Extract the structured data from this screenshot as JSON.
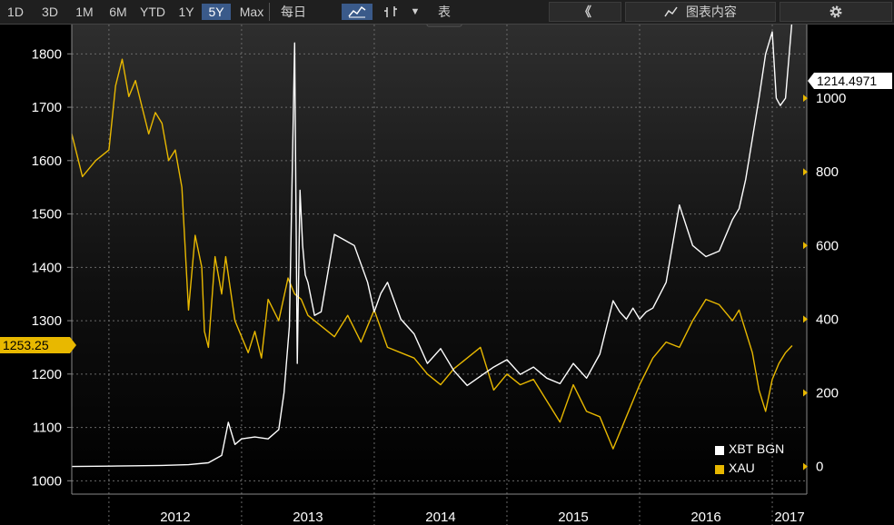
{
  "toolbar": {
    "ranges": [
      "1D",
      "3D",
      "1M",
      "6M",
      "YTD",
      "1Y",
      "5Y",
      "Max"
    ],
    "active_range": "5Y",
    "frequency": "每日",
    "frequency_caret": "▼",
    "table_label": "表",
    "collapse_label": "《",
    "chart_content_label": "图表内容",
    "settings_icon": "gear-icon"
  },
  "colors": {
    "xbt": "#ffffff",
    "xau": "#e8b800",
    "background": "#000000",
    "grid": "#6a6a6a"
  },
  "chart_data": {
    "type": "line",
    "series": [
      {
        "name": "XBT BGN",
        "axis": "right",
        "x": [
          2011.72,
          2012.0,
          2012.2,
          2012.4,
          2012.6,
          2012.75,
          2012.85,
          2012.9,
          2012.95,
          2013.0,
          2013.1,
          2013.2,
          2013.28,
          2013.32,
          2013.36,
          2013.4,
          2013.42,
          2013.44,
          2013.46,
          2013.48,
          2013.5,
          2013.55,
          2013.6,
          2013.7,
          2013.85,
          2013.95,
          2014.0,
          2014.05,
          2014.1,
          2014.2,
          2014.3,
          2014.4,
          2014.5,
          2014.6,
          2014.7,
          2014.8,
          2014.9,
          2015.0,
          2015.1,
          2015.2,
          2015.3,
          2015.4,
          2015.5,
          2015.6,
          2015.7,
          2015.8,
          2015.85,
          2015.9,
          2015.95,
          2016.0,
          2016.05,
          2016.1,
          2016.2,
          2016.3,
          2016.4,
          2016.5,
          2016.6,
          2016.7,
          2016.75,
          2016.8,
          2016.9,
          2016.95,
          2017.0,
          2017.03,
          2017.06,
          2017.1,
          2017.15
        ],
        "values": [
          0,
          1,
          2,
          3,
          5,
          10,
          30,
          120,
          60,
          75,
          80,
          75,
          100,
          200,
          380,
          1150,
          280,
          750,
          600,
          520,
          500,
          410,
          420,
          630,
          600,
          500,
          420,
          470,
          500,
          400,
          360,
          280,
          320,
          260,
          220,
          245,
          270,
          290,
          250,
          270,
          240,
          225,
          280,
          240,
          305,
          450,
          420,
          400,
          430,
          400,
          420,
          430,
          500,
          710,
          600,
          570,
          585,
          670,
          700,
          780,
          1000,
          1120,
          1180,
          1000,
          980,
          1000,
          1214.4971
        ]
      },
      {
        "name": "XAU",
        "axis": "left",
        "x": [
          2011.72,
          2011.8,
          2011.9,
          2012.0,
          2012.05,
          2012.1,
          2012.15,
          2012.2,
          2012.3,
          2012.35,
          2012.4,
          2012.45,
          2012.5,
          2012.55,
          2012.6,
          2012.65,
          2012.7,
          2012.72,
          2012.75,
          2012.8,
          2012.85,
          2012.88,
          2012.95,
          2013.05,
          2013.1,
          2013.15,
          2013.2,
          2013.28,
          2013.35,
          2013.4,
          2013.45,
          2013.5,
          2013.6,
          2013.7,
          2013.8,
          2013.9,
          2014.0,
          2014.1,
          2014.2,
          2014.3,
          2014.4,
          2014.5,
          2014.6,
          2014.7,
          2014.8,
          2014.9,
          2015.0,
          2015.1,
          2015.2,
          2015.3,
          2015.4,
          2015.5,
          2015.6,
          2015.7,
          2015.8,
          2015.9,
          2016.0,
          2016.1,
          2016.2,
          2016.3,
          2016.4,
          2016.5,
          2016.6,
          2016.7,
          2016.75,
          2016.8,
          2016.85,
          2016.9,
          2016.95,
          2017.0,
          2017.05,
          2017.1,
          2017.15
        ],
        "values": [
          1650,
          1570,
          1600,
          1620,
          1740,
          1790,
          1720,
          1750,
          1650,
          1690,
          1670,
          1600,
          1620,
          1550,
          1320,
          1460,
          1400,
          1280,
          1250,
          1420,
          1350,
          1420,
          1300,
          1240,
          1280,
          1230,
          1340,
          1300,
          1380,
          1350,
          1340,
          1310,
          1290,
          1270,
          1310,
          1260,
          1320,
          1250,
          1240,
          1230,
          1200,
          1180,
          1210,
          1230,
          1250,
          1170,
          1200,
          1180,
          1190,
          1150,
          1110,
          1180,
          1130,
          1120,
          1060,
          1120,
          1180,
          1230,
          1260,
          1250,
          1300,
          1340,
          1330,
          1300,
          1320,
          1280,
          1240,
          1170,
          1130,
          1190,
          1220,
          1240,
          1253.25
        ]
      }
    ],
    "left_axis": {
      "ticks": [
        1000,
        1100,
        1200,
        1300,
        1400,
        1500,
        1600,
        1700,
        1800
      ],
      "ylim": [
        975,
        1855
      ]
    },
    "right_axis": {
      "ticks": [
        0,
        200,
        400,
        600,
        800,
        1000
      ],
      "ylim": [
        -75,
        1200
      ]
    },
    "x_axis": {
      "labels": [
        "2012",
        "2013",
        "2014",
        "2015",
        "2016",
        "2017"
      ],
      "xlim": [
        2011.72,
        2017.26
      ]
    },
    "last_values": {
      "xbt": "1214.4971",
      "xau": "1253.25"
    },
    "legend": [
      "XBT BGN",
      "XAU"
    ],
    "legend_position": "bottom-right",
    "grid": true
  }
}
